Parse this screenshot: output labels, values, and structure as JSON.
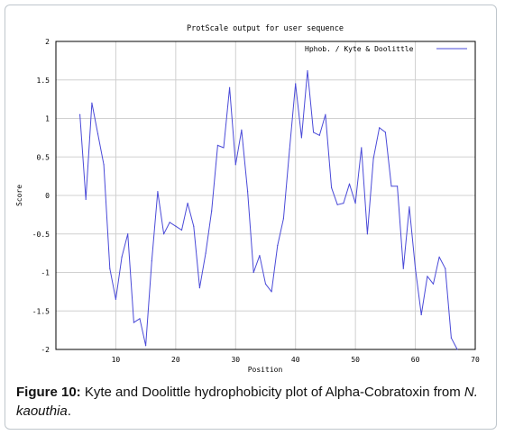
{
  "chart_data": {
    "type": "line",
    "title": "ProtScale output for user sequence",
    "xlabel": "Position",
    "ylabel": "Score",
    "xlim": [
      0,
      70
    ],
    "ylim": [
      -2,
      2
    ],
    "x_ticks": [
      "10",
      "20",
      "30",
      "40",
      "50",
      "60",
      "70"
    ],
    "y_ticks": [
      "2",
      "1.5",
      "1",
      "0.5",
      "0",
      "-0.5",
      "-1",
      "-1.5",
      "-2"
    ],
    "grid": true,
    "legend_position": "top-right",
    "series": [
      {
        "name": "Hphob. / Kyte & Doolittle",
        "color": "#4a4ad8",
        "x": [
          4,
          5,
          6,
          7,
          8,
          9,
          10,
          11,
          12,
          13,
          14,
          15,
          16,
          17,
          18,
          19,
          20,
          21,
          22,
          23,
          24,
          25,
          26,
          27,
          28,
          29,
          30,
          31,
          32,
          33,
          34,
          35,
          36,
          37,
          38,
          39,
          40,
          41,
          42,
          43,
          44,
          45,
          46,
          47,
          48,
          49,
          50,
          51,
          52,
          53,
          54,
          55,
          56,
          57,
          58,
          59,
          60,
          61,
          62,
          63,
          64,
          65,
          66,
          67
        ],
        "y": [
          1.05,
          -0.05,
          1.2,
          0.8,
          0.4,
          -0.95,
          -1.35,
          -0.8,
          -0.5,
          -1.65,
          -1.6,
          -1.95,
          -0.85,
          0.05,
          -0.5,
          -0.35,
          -0.4,
          -0.45,
          -0.1,
          -0.4,
          -1.2,
          -0.75,
          -0.2,
          0.65,
          0.62,
          1.4,
          0.4,
          0.85,
          0.05,
          -1.0,
          -0.78,
          -1.15,
          -1.25,
          -0.65,
          -0.3,
          0.6,
          1.45,
          0.75,
          1.62,
          0.82,
          0.78,
          1.05,
          0.1,
          -0.12,
          -0.1,
          0.15,
          -0.1,
          0.62,
          -0.5,
          0.48,
          0.88,
          0.82,
          0.12,
          0.12,
          -0.95,
          -0.15,
          -0.95,
          -1.55,
          -1.05,
          -1.15,
          -0.8,
          -0.95,
          -1.85,
          -2.0
        ]
      }
    ]
  },
  "caption": {
    "label": "Figure 10:",
    "text": " Kyte and Doolittle hydrophobicity plot of Alpha-Cobratoxin from ",
    "species": "N. kaouthia",
    "end": "."
  }
}
